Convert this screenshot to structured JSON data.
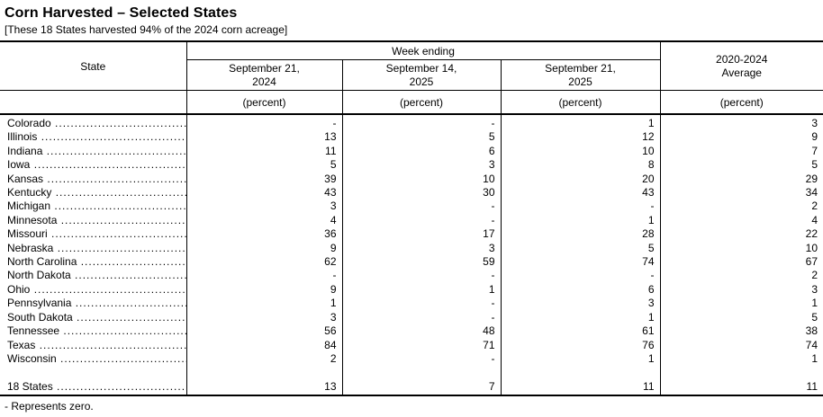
{
  "title": "Corn Harvested – Selected States",
  "subtitle": "[These 18 States harvested 94% of the 2024 corn acreage]",
  "footnote": "- Represents zero.",
  "colors": {
    "text": "#000000",
    "background": "#ffffff",
    "border": "#000000"
  },
  "table": {
    "state_header": "State",
    "group_header": "Week ending",
    "date_columns": [
      "September 21,\n2024",
      "September 14,\n2025",
      "September 21,\n2025"
    ],
    "avg_header": "2020-2024\nAverage",
    "unit_label": "(percent)",
    "rows": [
      {
        "state": "Colorado",
        "values": [
          "-",
          "-",
          "1",
          "3"
        ]
      },
      {
        "state": "Illinois",
        "values": [
          "13",
          "5",
          "12",
          "9"
        ]
      },
      {
        "state": "Indiana",
        "values": [
          "11",
          "6",
          "10",
          "7"
        ]
      },
      {
        "state": "Iowa",
        "values": [
          "5",
          "3",
          "8",
          "5"
        ]
      },
      {
        "state": "Kansas",
        "values": [
          "39",
          "10",
          "20",
          "29"
        ]
      },
      {
        "state": "Kentucky",
        "values": [
          "43",
          "30",
          "43",
          "34"
        ]
      },
      {
        "state": "Michigan",
        "values": [
          "3",
          "-",
          "-",
          "2"
        ]
      },
      {
        "state": "Minnesota",
        "values": [
          "4",
          "-",
          "1",
          "4"
        ]
      },
      {
        "state": "Missouri",
        "values": [
          "36",
          "17",
          "28",
          "22"
        ]
      },
      {
        "state": "Nebraska",
        "values": [
          "9",
          "3",
          "5",
          "10"
        ]
      },
      {
        "state": "North Carolina",
        "values": [
          "62",
          "59",
          "74",
          "67"
        ]
      },
      {
        "state": "North Dakota",
        "values": [
          "-",
          "-",
          "-",
          "2"
        ]
      },
      {
        "state": "Ohio",
        "values": [
          "9",
          "1",
          "6",
          "3"
        ]
      },
      {
        "state": "Pennsylvania",
        "values": [
          "1",
          "-",
          "3",
          "1"
        ]
      },
      {
        "state": "South Dakota",
        "values": [
          "3",
          "-",
          "1",
          "5"
        ]
      },
      {
        "state": "Tennessee",
        "values": [
          "56",
          "48",
          "61",
          "38"
        ]
      },
      {
        "state": "Texas",
        "values": [
          "84",
          "71",
          "76",
          "74"
        ]
      },
      {
        "state": "Wisconsin",
        "values": [
          "2",
          "-",
          "1",
          "1"
        ]
      }
    ],
    "total_row": {
      "state": "18 States",
      "values": [
        "13",
        "7",
        "11",
        "11"
      ]
    }
  }
}
